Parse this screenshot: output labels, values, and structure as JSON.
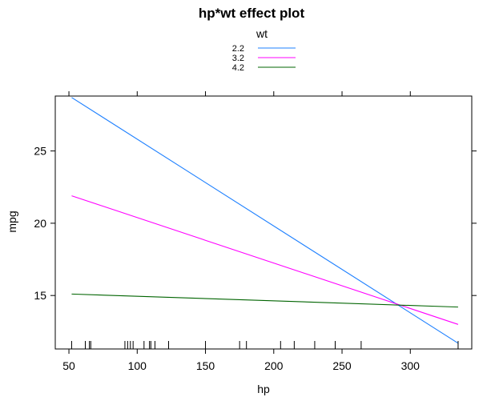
{
  "chart_data": {
    "type": "line",
    "title": "hp*wt effect plot",
    "xlabel": "hp",
    "ylabel": "mpg",
    "xlim": [
      40,
      345
    ],
    "ylim": [
      11.3,
      28.8
    ],
    "xticks": [
      50,
      100,
      150,
      200,
      250,
      300
    ],
    "yticks": [
      15,
      20,
      25
    ],
    "legend": {
      "title": "wt",
      "position": "top"
    },
    "series": [
      {
        "name": "2.2",
        "color": "#1E80FF",
        "x": [
          52,
          335
        ],
        "y": [
          28.7,
          11.7
        ]
      },
      {
        "name": "3.2",
        "color": "#FF00FF",
        "x": [
          52,
          335
        ],
        "y": [
          21.9,
          13.0
        ]
      },
      {
        "name": "4.2",
        "color": "#006400",
        "x": [
          52,
          335
        ],
        "y": [
          15.1,
          14.2
        ]
      }
    ],
    "rug_x": [
      52,
      62,
      65,
      66,
      91,
      93,
      95,
      97,
      105,
      109,
      110,
      113,
      123,
      150,
      175,
      180,
      205,
      215,
      230,
      245,
      264,
      335
    ]
  }
}
